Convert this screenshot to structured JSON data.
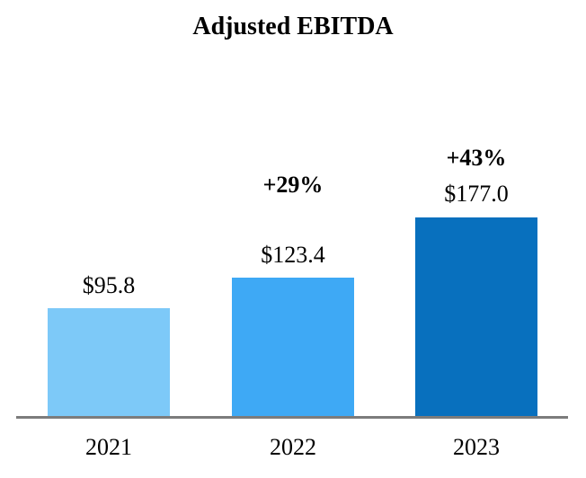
{
  "chart_data": {
    "type": "bar",
    "title": "Adjusted EBITDA",
    "categories": [
      "2021",
      "2022",
      "2023"
    ],
    "values": [
      95.8,
      123.4,
      177.0
    ],
    "value_labels": [
      "$95.8",
      "$123.4",
      "$177.0"
    ],
    "pct_change_labels": [
      null,
      "+29%",
      "+43%"
    ],
    "series": [
      {
        "name": "Adjusted EBITDA",
        "values": [
          95.8,
          123.4,
          177.0
        ]
      }
    ],
    "bar_colors": [
      "#7DC9F8",
      "#3EA9F5",
      "#0870BE"
    ],
    "axis_line_color": "#7C7C7C",
    "xlabel": "",
    "ylabel": "",
    "ylim": [
      0,
      177
    ],
    "grid": false,
    "legend": null
  }
}
